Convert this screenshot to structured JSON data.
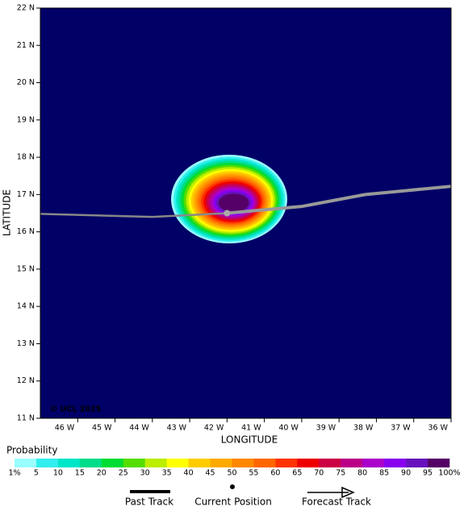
{
  "chart_data": {
    "type": "probability-map",
    "xlabel": "LONGITUDE",
    "ylabel": "LATITUDE",
    "annotation": "© UCL 2025",
    "xlim": [
      -47,
      -36
    ],
    "ylim": [
      11,
      22
    ],
    "xticks": [
      {
        "value": -46,
        "label": "46 W"
      },
      {
        "value": -45,
        "label": "45 W"
      },
      {
        "value": -44,
        "label": "44 W"
      },
      {
        "value": -43,
        "label": "43 W"
      },
      {
        "value": -42,
        "label": "42 W"
      },
      {
        "value": -41,
        "label": "41 W"
      },
      {
        "value": -40,
        "label": "40 W"
      },
      {
        "value": -39,
        "label": "39 W"
      },
      {
        "value": -38,
        "label": "38 W"
      },
      {
        "value": -37,
        "label": "37 W"
      },
      {
        "value": -36,
        "label": "36 W"
      }
    ],
    "yticks": [
      {
        "value": 11,
        "label": "11 N"
      },
      {
        "value": 12,
        "label": "12 N"
      },
      {
        "value": 13,
        "label": "13 N"
      },
      {
        "value": 14,
        "label": "14 N"
      },
      {
        "value": 15,
        "label": "15 N"
      },
      {
        "value": 16,
        "label": "16 N"
      },
      {
        "value": 17,
        "label": "17 N"
      },
      {
        "value": 18,
        "label": "18 N"
      },
      {
        "value": 19,
        "label": "19 N"
      },
      {
        "value": 20,
        "label": "20 N"
      },
      {
        "value": 21,
        "label": "21 N"
      },
      {
        "value": 22,
        "label": "22 N"
      }
    ],
    "background": "#000066",
    "past_track": {
      "name": "Past Track",
      "color": "#888888",
      "x": [
        -47,
        -44,
        -42
      ],
      "y": [
        16.48,
        16.4,
        16.5
      ]
    },
    "current_position": {
      "name": "Current Position",
      "color": "#aaaaaa",
      "x": -42,
      "y": 16.5
    },
    "forecast_track": {
      "name": "Forecast Track",
      "color": "#999999",
      "x": [
        -42,
        -40,
        -38.3,
        -36
      ],
      "y": [
        16.5,
        16.68,
        17.0,
        17.22
      ]
    },
    "legend": {
      "title": "Probability",
      "ticks": [
        {
          "value": 1,
          "label": "1%"
        },
        5,
        10,
        15,
        20,
        25,
        30,
        35,
        40,
        45,
        50,
        55,
        60,
        65,
        70,
        75,
        80,
        85,
        90,
        95,
        {
          "value": 100,
          "label": "100%"
        }
      ],
      "colors": [
        "#99ffff",
        "#33eeee",
        "#00e6c8",
        "#00dd88",
        "#00dd33",
        "#55dd00",
        "#bbee00",
        "#ffff00",
        "#ffcc00",
        "#ffaa00",
        "#ff8800",
        "#ff6600",
        "#ff3300",
        "#ee0000",
        "#cc0044",
        "#bb0088",
        "#aa00cc",
        "#8800ee",
        "#6611bb",
        "#550066"
      ]
    }
  }
}
